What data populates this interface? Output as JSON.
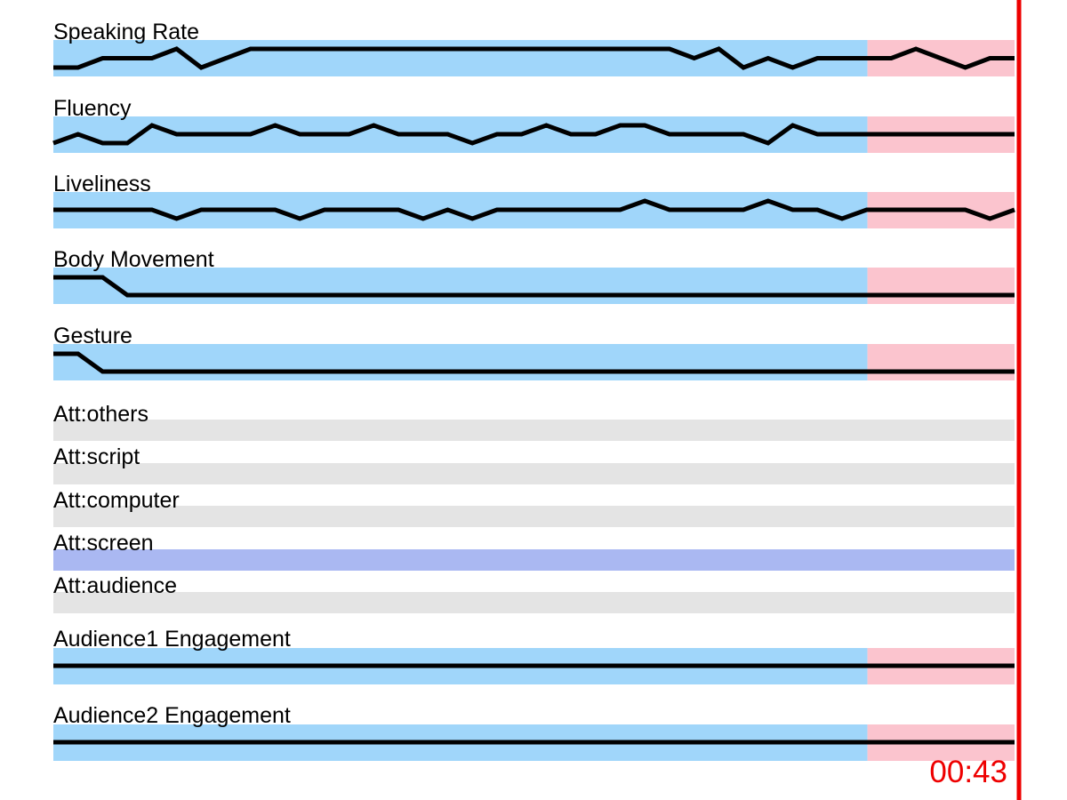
{
  "chart_data": {
    "type": "line",
    "series": [
      {
        "name": "Speaking Rate",
        "kind": "line",
        "values": [
          1,
          1,
          2,
          2,
          2,
          3,
          1,
          2,
          3,
          3,
          3,
          3,
          3,
          3,
          3,
          3,
          3,
          3,
          3,
          3,
          3,
          3,
          3,
          3,
          3,
          3,
          2,
          3,
          1,
          2,
          1,
          2,
          2,
          2,
          2,
          3,
          2,
          1,
          2,
          2
        ],
        "ylim": [
          0,
          4
        ]
      },
      {
        "name": "Fluency",
        "kind": "line",
        "values": [
          1,
          2,
          1,
          1,
          3,
          2,
          2,
          2,
          2,
          3,
          2,
          2,
          2,
          3,
          2,
          2,
          2,
          1,
          2,
          2,
          3,
          2,
          2,
          3,
          3,
          2,
          2,
          2,
          2,
          1,
          3,
          2,
          2,
          2,
          2,
          2,
          2,
          2,
          2,
          2
        ],
        "ylim": [
          0,
          4
        ]
      },
      {
        "name": "Liveliness",
        "kind": "line",
        "values": [
          2,
          2,
          2,
          2,
          2,
          1,
          2,
          2,
          2,
          2,
          1,
          2,
          2,
          2,
          2,
          1,
          2,
          1,
          2,
          2,
          2,
          2,
          2,
          2,
          3,
          2,
          2,
          2,
          2,
          3,
          2,
          2,
          1,
          2,
          2,
          2,
          2,
          2,
          1,
          2
        ],
        "ylim": [
          0,
          4
        ]
      },
      {
        "name": "Body Movement",
        "kind": "line",
        "values": [
          2,
          2,
          2,
          1,
          1,
          1,
          1,
          1,
          1,
          1,
          1,
          1,
          1,
          1,
          1,
          1,
          1,
          1,
          1,
          1,
          1,
          1,
          1,
          1,
          1,
          1,
          1,
          1,
          1,
          1,
          1,
          1,
          1,
          1,
          1,
          1,
          1,
          1,
          1,
          1
        ],
        "ylim": [
          0,
          3
        ]
      },
      {
        "name": "Gesture",
        "kind": "line",
        "values": [
          2,
          2,
          1,
          1,
          1,
          1,
          1,
          1,
          1,
          1,
          1,
          1,
          1,
          1,
          1,
          1,
          1,
          1,
          1,
          1,
          1,
          1,
          1,
          1,
          1,
          1,
          1,
          1,
          1,
          1,
          1,
          1,
          1,
          1,
          1,
          1,
          1,
          1,
          1,
          1
        ],
        "ylim": [
          0,
          3
        ]
      },
      {
        "name": "Att:others",
        "kind": "attention",
        "active": false
      },
      {
        "name": "Att:script",
        "kind": "attention",
        "active": false
      },
      {
        "name": "Att:computer",
        "kind": "attention",
        "active": false
      },
      {
        "name": "Att:screen",
        "kind": "attention",
        "active": true
      },
      {
        "name": "Att:audience",
        "kind": "attention",
        "active": false
      },
      {
        "name": "Audience1 Engagement",
        "kind": "line",
        "values": [
          1,
          1
        ],
        "ylim": [
          0,
          2
        ]
      },
      {
        "name": "Audience2 Engagement",
        "kind": "line",
        "values": [
          1,
          1
        ],
        "ylim": [
          0,
          2
        ]
      }
    ],
    "highlight_end_fraction": 0.847,
    "current_time": "00:43",
    "grid": false,
    "legend": "none"
  },
  "colors": {
    "line_band": "#a0d6fa",
    "recent_band": "#fbc4ce",
    "attention_off": "#e4e4e4",
    "attention_on": "#aab8f2",
    "line": "#000000",
    "playhead": "#ee0000"
  }
}
